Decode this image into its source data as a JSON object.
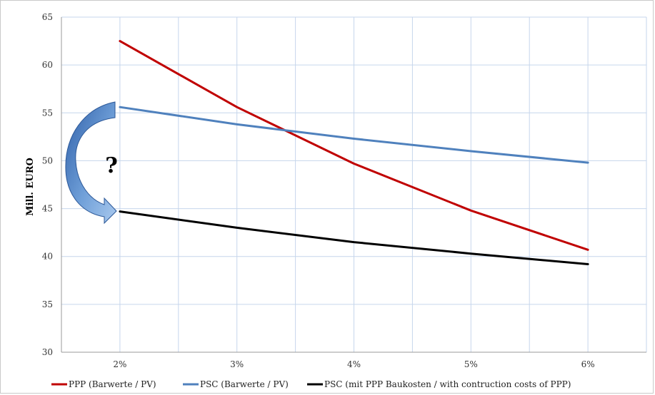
{
  "chart_data": {
    "type": "line",
    "title": "",
    "xlabel": "",
    "ylabel": "Mill. EURO",
    "ylim": [
      30,
      65
    ],
    "y_ticks": [
      "30",
      "35",
      "40",
      "45",
      "50",
      "55",
      "60",
      "65"
    ],
    "categories": [
      "2%",
      "3%",
      "4%",
      "5%",
      "6%"
    ],
    "x_values": [
      0.02,
      0.03,
      0.04,
      0.05,
      0.06
    ],
    "grid": true,
    "legend_position": "bottom",
    "series": [
      {
        "name": "PPP (Barwerte / PV)",
        "color": "#c00000",
        "values": [
          62.5,
          55.6,
          49.7,
          44.8,
          40.7
        ]
      },
      {
        "name": "PSC (Barwerte / PV)",
        "color": "#4f81bd",
        "values": [
          55.6,
          53.8,
          52.3,
          51.0,
          49.8
        ]
      },
      {
        "name": "PSC (mit PPP Baukosten / with contruction costs of PPP)",
        "color": "#000000",
        "values": [
          44.7,
          43.0,
          41.5,
          40.3,
          39.2
        ]
      }
    ],
    "annotations": [
      {
        "text": "?"
      }
    ]
  }
}
